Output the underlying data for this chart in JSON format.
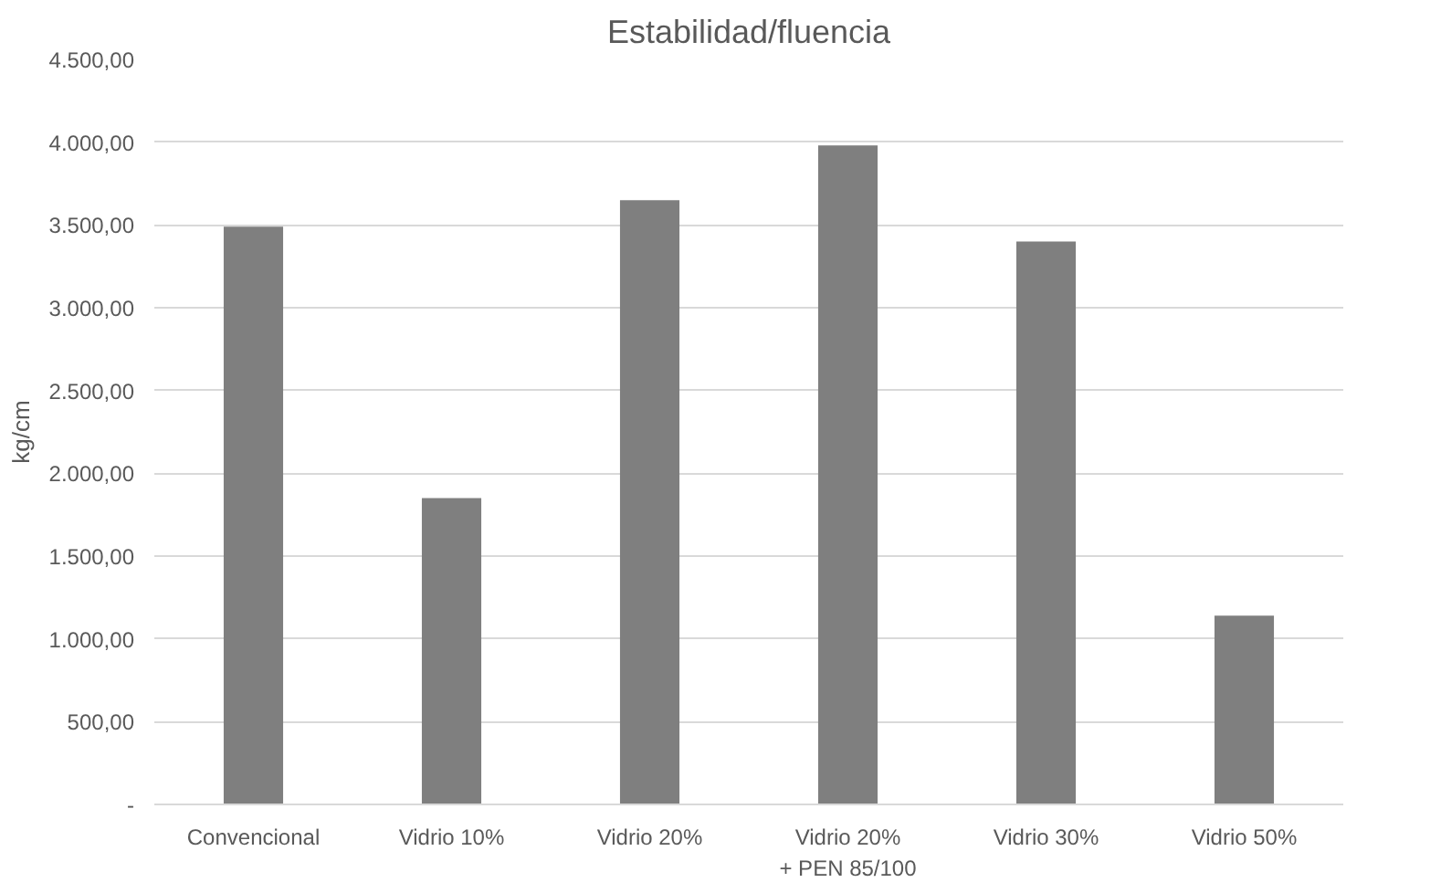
{
  "chart_data": {
    "type": "bar",
    "title": "Estabilidad/fluencia",
    "ylabel": "kg/cm",
    "categories": [
      "Convencional",
      "Vidrio 10%",
      "Vidrio 20%",
      "Vidrio 20% + PEN 85/100",
      "Vidrio 30%",
      "Vidrio 50%"
    ],
    "values": [
      3490,
      1850,
      3650,
      3980,
      3400,
      1140
    ],
    "color": "#7f7f7f",
    "ylim": [
      0,
      4500
    ],
    "yticks": [
      {
        "value": 0,
        "label": "-"
      },
      {
        "value": 500,
        "label": "500,00"
      },
      {
        "value": 1000,
        "label": "1.000,00"
      },
      {
        "value": 1500,
        "label": "1.500,00"
      },
      {
        "value": 2000,
        "label": "2.000,00"
      },
      {
        "value": 2500,
        "label": "2.500,00"
      },
      {
        "value": 3000,
        "label": "3.000,00"
      },
      {
        "value": 3500,
        "label": "3.500,00"
      },
      {
        "value": 4000,
        "label": "4.000,00"
      },
      {
        "value": 4500,
        "label": "4.500,00"
      }
    ],
    "grid": "y"
  }
}
